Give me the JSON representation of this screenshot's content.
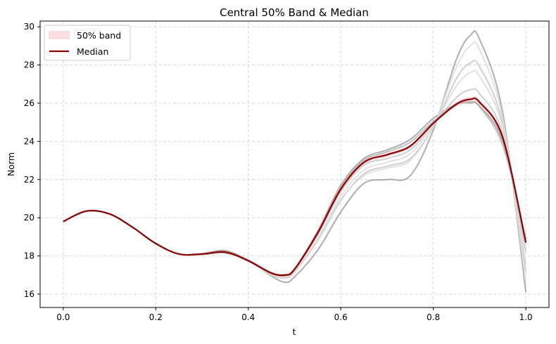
{
  "chart_data": {
    "type": "line",
    "title": "Central 50% Band & Median",
    "xlabel": "t",
    "ylabel": "Norm",
    "xlim": [
      -0.05,
      1.05
    ],
    "ylim": [
      15.3,
      30.3
    ],
    "xticks": [
      0.0,
      0.2,
      0.4,
      0.6,
      0.8,
      1.0
    ],
    "xtick_labels": [
      "0.0",
      "0.2",
      "0.4",
      "0.6",
      "0.8",
      "1.0"
    ],
    "yticks": [
      16,
      18,
      20,
      22,
      24,
      26,
      28,
      30
    ],
    "ytick_labels": [
      "16",
      "18",
      "20",
      "22",
      "24",
      "26",
      "28",
      "30"
    ],
    "grid": true,
    "legend_position": "top-left",
    "legend": [
      {
        "label": "50% band",
        "kind": "band",
        "color": "#f4a6ad"
      },
      {
        "label": "Median",
        "kind": "line",
        "color": "#8b0000"
      }
    ],
    "x": [
      0.0,
      0.05,
      0.1,
      0.15,
      0.2,
      0.25,
      0.3,
      0.35,
      0.4,
      0.45,
      0.48,
      0.5,
      0.55,
      0.6,
      0.65,
      0.7,
      0.75,
      0.8,
      0.85,
      0.88,
      0.9,
      0.95,
      1.0
    ],
    "median": [
      19.8,
      20.35,
      20.2,
      19.5,
      18.65,
      18.1,
      18.1,
      18.2,
      17.75,
      17.1,
      17.0,
      17.3,
      19.2,
      21.5,
      22.9,
      23.3,
      23.75,
      24.95,
      25.95,
      26.2,
      26.05,
      24.2,
      18.7
    ],
    "band": {
      "lower": [
        19.8,
        20.33,
        20.18,
        19.48,
        18.63,
        18.08,
        18.07,
        18.15,
        17.7,
        17.03,
        16.93,
        17.22,
        19.05,
        21.38,
        22.78,
        23.18,
        23.65,
        24.9,
        25.82,
        26.08,
        25.93,
        24.0,
        18.5
      ],
      "upper": [
        19.8,
        20.37,
        20.22,
        19.52,
        18.67,
        18.12,
        18.13,
        18.25,
        17.8,
        17.17,
        17.07,
        17.38,
        19.32,
        21.58,
        22.98,
        23.4,
        23.85,
        25.0,
        26.05,
        26.32,
        26.17,
        24.35,
        18.85
      ]
    },
    "samples": [
      {
        "color": "#a0a0a0",
        "values": [
          19.8,
          20.35,
          20.2,
          19.5,
          18.65,
          18.1,
          18.08,
          18.15,
          17.75,
          16.95,
          16.62,
          16.9,
          18.3,
          20.3,
          21.8,
          22.0,
          22.2,
          24.6,
          28.3,
          29.55,
          29.35,
          25.5,
          16.1
        ]
      },
      {
        "color": "#a0a0a0",
        "values": [
          19.8,
          20.35,
          20.2,
          19.5,
          18.65,
          18.1,
          18.12,
          18.28,
          17.78,
          17.1,
          17.0,
          17.3,
          19.3,
          21.7,
          23.1,
          23.55,
          24.1,
          25.2,
          25.95,
          26.05,
          25.85,
          24.0,
          18.8
        ]
      },
      {
        "color": "#c8c8c8",
        "values": [
          19.8,
          20.35,
          20.2,
          19.5,
          18.65,
          18.1,
          18.1,
          18.18,
          17.72,
          17.0,
          16.85,
          17.15,
          18.8,
          20.9,
          22.3,
          22.7,
          23.1,
          24.75,
          27.3,
          28.1,
          27.9,
          24.9,
          17.2
        ]
      },
      {
        "color": "#dcdcdc",
        "values": [
          19.8,
          20.35,
          20.2,
          19.5,
          18.65,
          18.1,
          18.1,
          18.2,
          17.75,
          17.05,
          16.9,
          17.2,
          18.9,
          21.1,
          22.5,
          22.9,
          23.35,
          24.85,
          26.9,
          27.6,
          27.4,
          24.7,
          17.6
        ]
      },
      {
        "color": "#dcdcdc",
        "values": [
          19.8,
          20.35,
          20.2,
          19.5,
          18.65,
          18.1,
          18.1,
          18.2,
          17.74,
          17.02,
          16.88,
          17.18,
          18.85,
          20.95,
          22.2,
          22.6,
          23.0,
          24.8,
          27.9,
          29.0,
          28.8,
          25.2,
          16.6
        ]
      },
      {
        "color": "#c8c8c8",
        "values": [
          19.8,
          20.35,
          20.2,
          19.5,
          18.65,
          18.1,
          18.1,
          18.2,
          17.75,
          17.08,
          16.96,
          17.26,
          19.1,
          21.35,
          22.75,
          23.1,
          23.55,
          24.9,
          26.3,
          26.7,
          26.5,
          24.4,
          18.2
        ]
      },
      {
        "color": "#b4b4b4",
        "values": [
          19.8,
          20.35,
          20.2,
          19.5,
          18.65,
          18.1,
          18.1,
          18.22,
          17.77,
          17.12,
          17.02,
          17.33,
          19.25,
          21.6,
          23.0,
          23.45,
          23.95,
          25.05,
          25.9,
          26.0,
          25.8,
          23.8,
          18.9
        ]
      }
    ]
  }
}
